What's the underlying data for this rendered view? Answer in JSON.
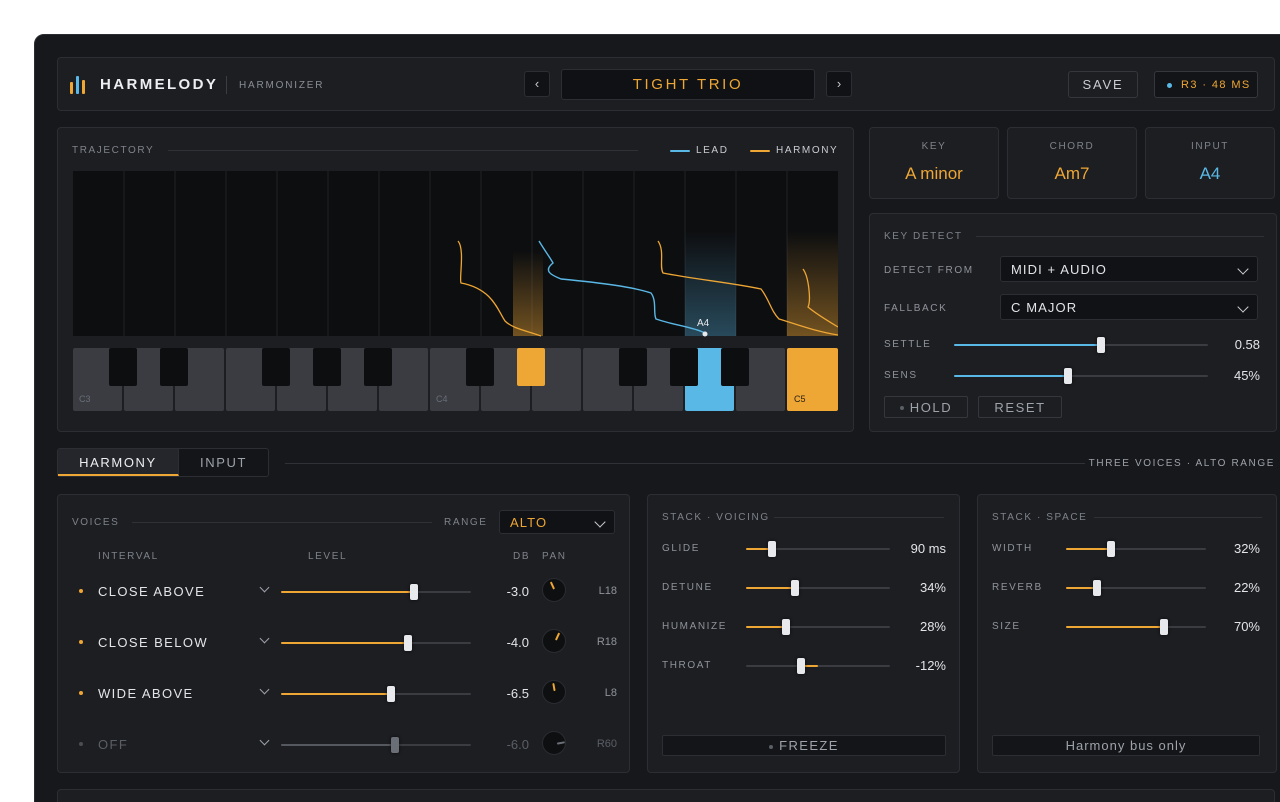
{
  "app": {
    "brand": "HARMELODY",
    "subtitle": "HARMONIZER",
    "preset": "TIGHT TRIO",
    "save_label": "SAVE",
    "latency": "R3 · 48 MS",
    "colors": {
      "accent": "#eea634",
      "lead": "#5ab8e6",
      "panel": "#1d1e22",
      "bg": "#17181c"
    }
  },
  "trajectory": {
    "title": "TRAJECTORY",
    "legend_lead": "LEAD",
    "legend_harmony": "HARMONY",
    "current_note": "A4",
    "octave_labels": [
      "C3",
      "C4",
      "C5"
    ],
    "active_keys": {
      "lead": "A4",
      "harmony": [
        "F4",
        "C5"
      ]
    }
  },
  "cards": [
    {
      "label": "KEY",
      "value": "A minor",
      "color": "#eea634"
    },
    {
      "label": "CHORD",
      "value": "Am7",
      "color": "#eea634"
    },
    {
      "label": "INPUT",
      "value": "A4",
      "color": "#5ab8e6"
    }
  ],
  "key_detect": {
    "title": "KEY DETECT",
    "detect_from_label": "DETECT FROM",
    "detect_from_value": "MIDI + AUDIO",
    "fallback_label": "FALLBACK",
    "fallback_value": "C MAJOR",
    "settle_label": "SETTLE",
    "settle_value": "0.58",
    "settle_fraction": 0.58,
    "sens_label": "SENS",
    "sens_value": "45%",
    "sens_fraction": 0.45,
    "hold_label": "HOLD",
    "reset_label": "RESET"
  },
  "tabs": {
    "harmony": "HARMONY",
    "input": "INPUT",
    "summary": "THREE VOICES · ALTO RANGE"
  },
  "voices": {
    "title": "VOICES",
    "range_label": "RANGE",
    "range_value": "ALTO",
    "col_interval": "INTERVAL",
    "col_level": "LEVEL",
    "col_db": "DB",
    "col_pan": "PAN",
    "rows": [
      {
        "name": "CLOSE ABOVE",
        "db": "-3.0",
        "pan": "L18",
        "level": 0.7,
        "pan_angle": -25,
        "active": true
      },
      {
        "name": "CLOSE BELOW",
        "db": "-4.0",
        "pan": "R18",
        "level": 0.67,
        "pan_angle": 25,
        "active": true
      },
      {
        "name": "WIDE ABOVE",
        "db": "-6.5",
        "pan": "L8",
        "level": 0.58,
        "pan_angle": -10,
        "active": true
      },
      {
        "name": "OFF",
        "db": "-6.0",
        "pan": "R60",
        "level": 0.6,
        "pan_angle": 80,
        "active": false
      }
    ]
  },
  "stack_voicing": {
    "title": "STACK · VOICING",
    "rows": [
      {
        "label": "GLIDE",
        "value": "90 ms",
        "fraction": 0.18
      },
      {
        "label": "DETUNE",
        "value": "34%",
        "fraction": 0.34
      },
      {
        "label": "HUMANIZE",
        "value": "28%",
        "fraction": 0.28
      },
      {
        "label": "THROAT",
        "value": "-12%",
        "fraction": -0.12
      }
    ],
    "freeze_label": "FREEZE"
  },
  "stack_space": {
    "title": "STACK · SPACE",
    "rows": [
      {
        "label": "WIDTH",
        "value": "32%",
        "fraction": 0.32
      },
      {
        "label": "REVERB",
        "value": "22%",
        "fraction": 0.22
      },
      {
        "label": "SIZE",
        "value": "70%",
        "fraction": 0.7
      }
    ],
    "bus_label": "Harmony bus only"
  }
}
